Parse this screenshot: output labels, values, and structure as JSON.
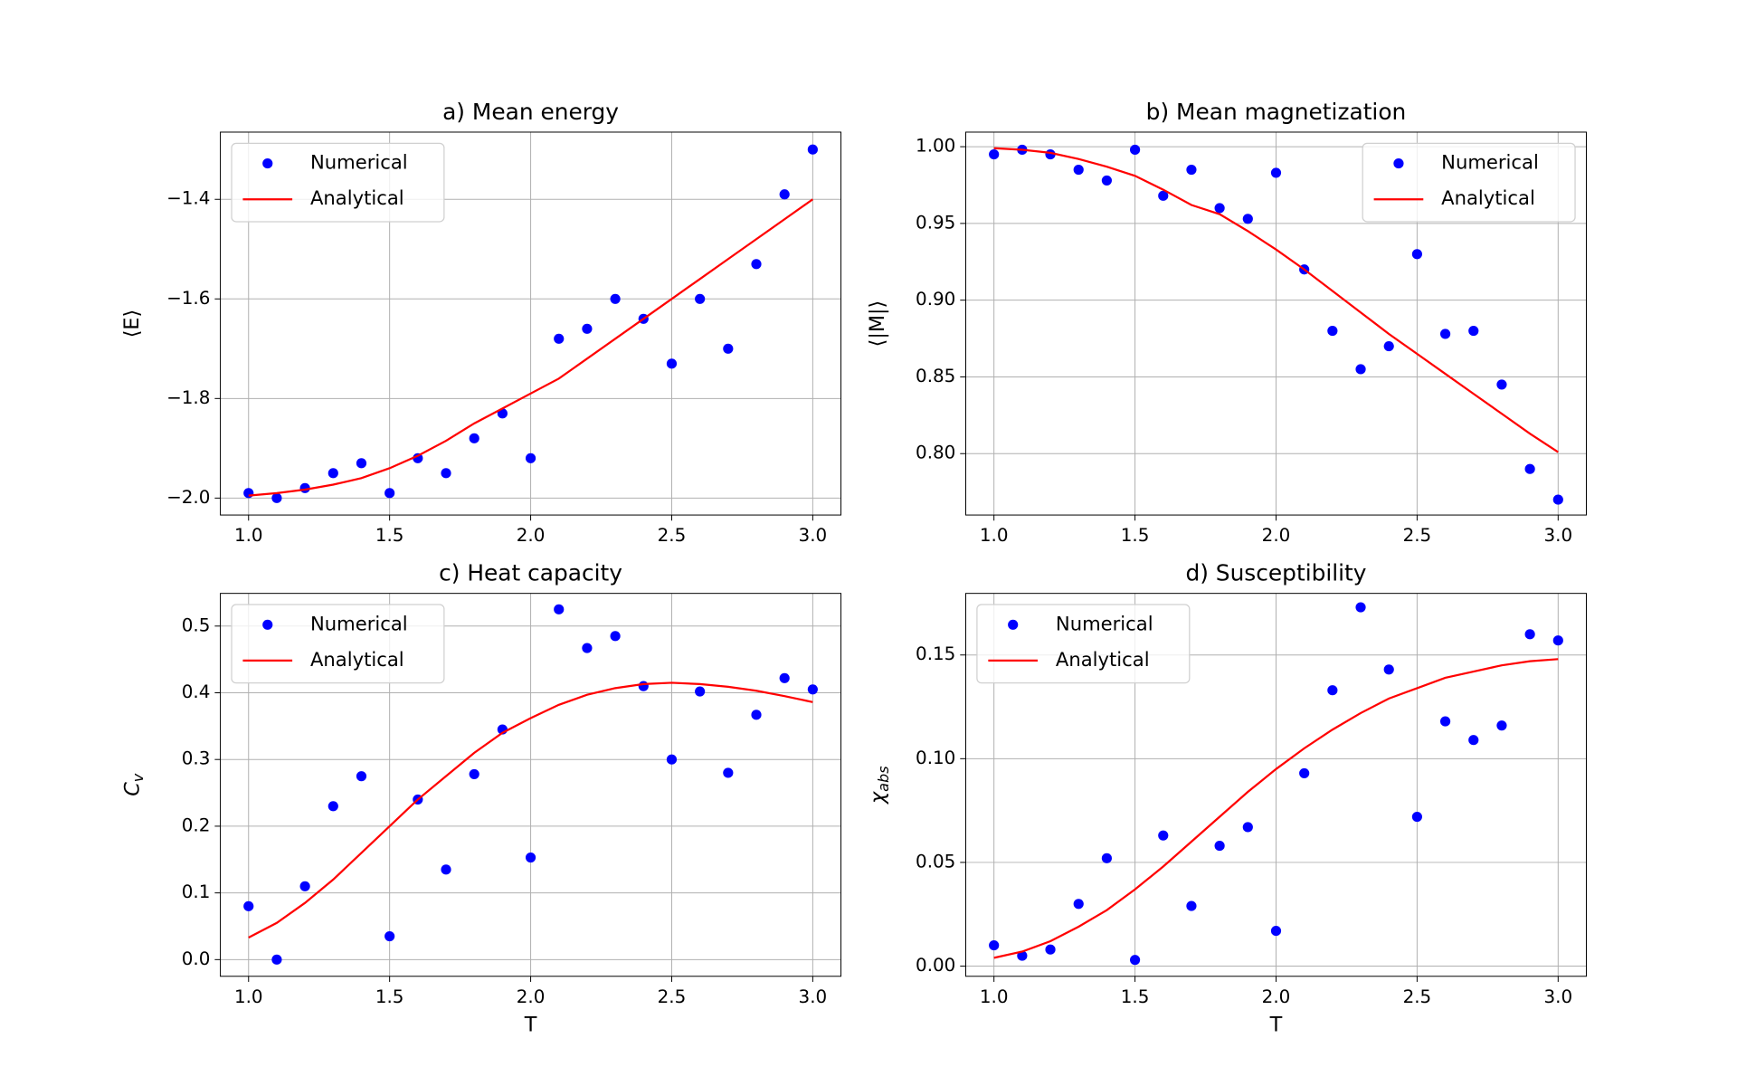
{
  "chart_data": [
    {
      "type": "line",
      "title": "a) Mean energy",
      "ylabel": "⟨E⟩",
      "x": [
        1.0,
        1.1,
        1.2,
        1.3,
        1.4,
        1.5,
        1.6,
        1.7,
        1.8,
        1.9,
        2.0,
        2.1,
        2.2,
        2.3,
        2.4,
        2.5,
        2.6,
        2.7,
        2.8,
        2.9,
        3.0
      ],
      "series": [
        {
          "name": "Numerical",
          "color": "#0000ff",
          "marker": "o",
          "values": [
            -1.99,
            -2.0,
            -1.98,
            -1.95,
            -1.93,
            -1.99,
            -1.92,
            -1.95,
            -1.88,
            -1.83,
            -1.92,
            -1.68,
            -1.66,
            -1.6,
            -1.64,
            -1.73,
            -1.6,
            -1.7,
            -1.53,
            -1.39,
            -1.3
          ]
        },
        {
          "name": "Analytical",
          "color": "#ff0000",
          "linestyle": "-",
          "values": [
            -1.995,
            -1.99,
            -1.983,
            -1.973,
            -1.96,
            -1.94,
            -1.915,
            -1.885,
            -1.85,
            -1.82,
            -1.79,
            -1.76,
            -1.72,
            -1.68,
            -1.64,
            -1.6,
            -1.56,
            -1.52,
            -1.48,
            -1.44,
            -1.4
          ]
        }
      ],
      "xlim": [
        0.9,
        3.1
      ],
      "xticks": [
        {
          "value": 1.0,
          "label": "1.0"
        },
        1.5,
        {
          "value": 2.0,
          "label": "2.0"
        },
        2.5,
        {
          "value": 3.0,
          "label": "3.0"
        }
      ],
      "ylim": [
        -2.034,
        -1.265
      ],
      "yticks": [
        {
          "value": -2.0,
          "label": "−2.0"
        },
        {
          "value": -1.8,
          "label": "−1.8"
        },
        {
          "value": -1.6,
          "label": "−1.6"
        },
        {
          "value": -1.4,
          "label": "−1.4"
        }
      ],
      "grid": true,
      "legend": "upper left"
    },
    {
      "type": "line",
      "title": "b) Mean magnetization",
      "ylabel": "⟨|M|⟩",
      "x": [
        1.0,
        1.1,
        1.2,
        1.3,
        1.4,
        1.5,
        1.6,
        1.7,
        1.8,
        1.9,
        2.0,
        2.1,
        2.2,
        2.3,
        2.4,
        2.5,
        2.6,
        2.7,
        2.8,
        2.9,
        3.0
      ],
      "series": [
        {
          "name": "Numerical",
          "color": "#0000ff",
          "marker": "o",
          "values": [
            0.995,
            0.998,
            0.995,
            0.985,
            0.978,
            0.998,
            0.968,
            0.985,
            0.96,
            0.953,
            0.983,
            0.92,
            0.88,
            0.855,
            0.87,
            0.93,
            0.878,
            0.88,
            0.845,
            0.79,
            0.77
          ]
        },
        {
          "name": "Analytical",
          "color": "#ff0000",
          "linestyle": "-",
          "values": [
            0.999,
            0.998,
            0.996,
            0.992,
            0.987,
            0.981,
            0.972,
            0.962,
            0.956,
            0.945,
            0.933,
            0.92,
            0.906,
            0.892,
            0.878,
            0.865,
            0.852,
            0.839,
            0.826,
            0.813,
            0.801
          ]
        }
      ],
      "xlim": [
        0.9,
        3.1
      ],
      "xticks": [
        {
          "value": 1.0,
          "label": "1.0"
        },
        1.5,
        {
          "value": 2.0,
          "label": "2.0"
        },
        2.5,
        {
          "value": 3.0,
          "label": "3.0"
        }
      ],
      "ylim": [
        0.76,
        1.0095
      ],
      "yticks": [
        {
          "value": 0.8,
          "label": "0.80"
        },
        0.85,
        {
          "value": 0.9,
          "label": "0.90"
        },
        0.95,
        {
          "value": 1.0,
          "label": "1.00"
        }
      ],
      "grid": true,
      "legend": "upper right"
    },
    {
      "type": "line",
      "title": "c) Heat capacity",
      "xlabel": "T",
      "ylabel": {
        "text": "C",
        "sub": "v"
      },
      "x": [
        1.0,
        1.1,
        1.2,
        1.3,
        1.4,
        1.5,
        1.6,
        1.7,
        1.8,
        1.9,
        2.0,
        2.1,
        2.2,
        2.3,
        2.4,
        2.5,
        2.6,
        2.7,
        2.8,
        2.9,
        3.0
      ],
      "series": [
        {
          "name": "Numerical",
          "color": "#0000ff",
          "marker": "o",
          "values": [
            0.08,
            0.0,
            0.11,
            0.23,
            0.275,
            0.035,
            0.24,
            0.135,
            0.278,
            0.345,
            0.153,
            0.525,
            0.467,
            0.485,
            0.41,
            0.3,
            0.402,
            0.28,
            0.367,
            0.422,
            0.405
          ]
        },
        {
          "name": "Analytical",
          "color": "#ff0000",
          "linestyle": "-",
          "values": [
            0.033,
            0.055,
            0.085,
            0.12,
            0.16,
            0.2,
            0.24,
            0.275,
            0.31,
            0.34,
            0.362,
            0.382,
            0.397,
            0.407,
            0.413,
            0.415,
            0.413,
            0.409,
            0.403,
            0.395,
            0.386
          ]
        }
      ],
      "xlim": [
        0.9,
        3.1
      ],
      "xticks": [
        {
          "value": 1.0,
          "label": "1.0"
        },
        1.5,
        {
          "value": 2.0,
          "label": "2.0"
        },
        2.5,
        {
          "value": 3.0,
          "label": "3.0"
        }
      ],
      "ylim": [
        -0.025,
        0.549
      ],
      "yticks": [
        {
          "value": 0.0,
          "label": "0.0"
        },
        0.1,
        0.2,
        0.3,
        0.4,
        0.5
      ],
      "grid": true,
      "legend": "upper left"
    },
    {
      "type": "line",
      "title": "d) Susceptibility",
      "xlabel": "T",
      "ylabel": {
        "text": "χ",
        "sub": "abs"
      },
      "x": [
        1.0,
        1.1,
        1.2,
        1.3,
        1.4,
        1.5,
        1.6,
        1.7,
        1.8,
        1.9,
        2.0,
        2.1,
        2.2,
        2.3,
        2.4,
        2.5,
        2.6,
        2.7,
        2.8,
        2.9,
        3.0
      ],
      "series": [
        {
          "name": "Numerical",
          "color": "#0000ff",
          "marker": "o",
          "values": [
            0.01,
            0.005,
            0.008,
            0.03,
            0.052,
            0.003,
            0.063,
            0.029,
            0.058,
            0.067,
            0.017,
            0.093,
            0.133,
            0.173,
            0.143,
            0.072,
            0.118,
            0.109,
            0.116,
            0.16,
            0.157
          ]
        },
        {
          "name": "Analytical",
          "color": "#ff0000",
          "linestyle": "-",
          "values": [
            0.004,
            0.007,
            0.012,
            0.019,
            0.027,
            0.037,
            0.048,
            0.06,
            0.072,
            0.084,
            0.095,
            0.105,
            0.114,
            0.122,
            0.129,
            0.134,
            0.139,
            0.142,
            0.145,
            0.147,
            0.148
          ]
        }
      ],
      "xlim": [
        0.9,
        3.1
      ],
      "xticks": [
        {
          "value": 1.0,
          "label": "1.0"
        },
        1.5,
        {
          "value": 2.0,
          "label": "2.0"
        },
        2.5,
        {
          "value": 3.0,
          "label": "3.0"
        }
      ],
      "ylim": [
        -0.0049,
        0.1797
      ],
      "yticks": [
        {
          "value": 0.0,
          "label": "0.00"
        },
        0.05,
        {
          "value": 0.1,
          "label": "0.10"
        },
        0.15
      ],
      "grid": true,
      "legend": "upper left"
    }
  ]
}
